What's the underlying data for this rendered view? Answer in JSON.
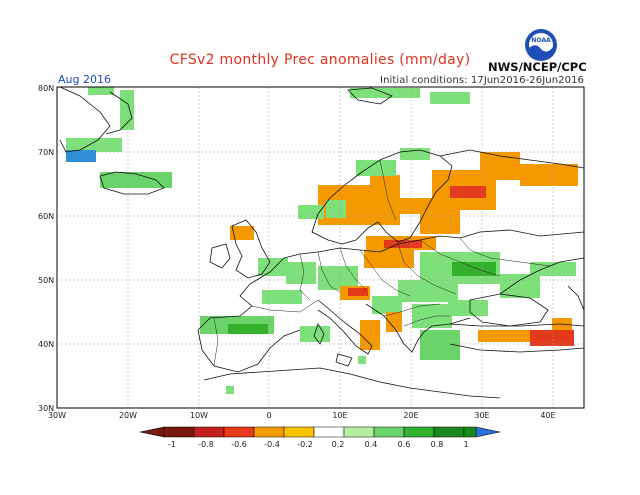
{
  "title": "CFSv2 monthly Prec anomalies (mm/day)",
  "period_label": "Aug 2016",
  "initial_conditions": "Initial conditions: 17Jun2016-26Jun2016",
  "org_label": "NWS/NCEP/CPC",
  "logo_text": "NOAA",
  "map": {
    "lat_labels": [
      "80N",
      "70N",
      "60N",
      "50N",
      "40N",
      "30N"
    ],
    "lon_labels": [
      "30W",
      "20W",
      "10W",
      "0",
      "10E",
      "20E",
      "30E",
      "40E"
    ]
  },
  "colorbar": {
    "labels": [
      "-1",
      "-0.8",
      "-0.6",
      "-0.4",
      "-0.2",
      "0.2",
      "0.4",
      "0.6",
      "0.8",
      "1"
    ],
    "colors": [
      "#7a1a0e",
      "#c0201a",
      "#e83c18",
      "#f49a00",
      "#ffffff",
      "#b4f0a0",
      "#6ad46a",
      "#35b02c",
      "#1a8a1a",
      "#2a6fd8"
    ]
  }
}
